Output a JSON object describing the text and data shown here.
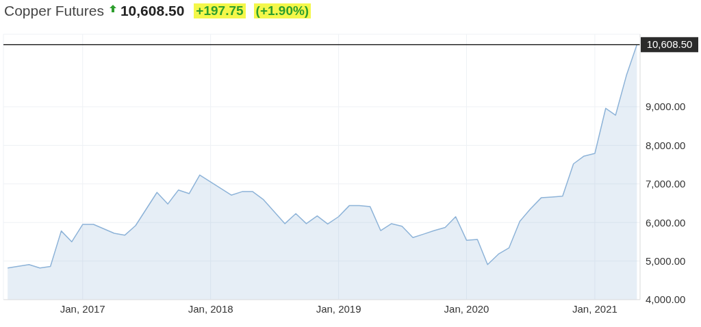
{
  "chart_data": {
    "type": "area",
    "title": "Copper Futures",
    "annotations": [
      "10,608.50",
      "+197.75",
      "(+1.90%)"
    ],
    "x": [
      "2016-06",
      "2016-08",
      "2016-09",
      "2016-10",
      "2016-11",
      "2016-12",
      "2017-01",
      "2017-02",
      "2017-04",
      "2017-05",
      "2017-06",
      "2017-08",
      "2017-09",
      "2017-10",
      "2017-11",
      "2017-12",
      "2018-03",
      "2018-04",
      "2018-05",
      "2018-06",
      "2018-08",
      "2018-09",
      "2018-10",
      "2018-11",
      "2018-12",
      "2019-01",
      "2019-02",
      "2019-03",
      "2019-04",
      "2019-05",
      "2019-06",
      "2019-07",
      "2019-08",
      "2019-09",
      "2019-10",
      "2019-11",
      "2019-12",
      "2020-01",
      "2020-02",
      "2020-03",
      "2020-04",
      "2020-05",
      "2020-06",
      "2020-07",
      "2020-08",
      "2020-09",
      "2020-10",
      "2020-11",
      "2020-12",
      "2021-01",
      "2021-02",
      "2021-03",
      "2021-04",
      "2021-05"
    ],
    "series": [
      {
        "color": "#8db3d8",
        "values": [
          4820,
          4910,
          4820,
          4860,
          5780,
          5500,
          5950,
          5950,
          5720,
          5670,
          5920,
          6780,
          6480,
          6840,
          6750,
          7230,
          6710,
          6800,
          6800,
          6590,
          5970,
          6230,
          5970,
          6170,
          5960,
          6150,
          6440,
          6440,
          6410,
          5790,
          5970,
          5900,
          5610,
          5700,
          5790,
          5870,
          6150,
          5540,
          5560,
          4910,
          5180,
          5340,
          6030,
          6350,
          6640,
          6660,
          6680,
          7520,
          7720,
          7790,
          8960,
          8780,
          9810,
          10608.5
        ]
      }
    ],
    "xlim": [
      "2016-05-20",
      "2021-05-10"
    ],
    "xticks": [
      {
        "value": "2017-01-01",
        "label": "Jan, 2017"
      },
      {
        "value": "2018-01-01",
        "label": "Jan, 2018"
      },
      {
        "value": "2019-01-01",
        "label": "Jan, 2019"
      },
      {
        "value": "2020-01-01",
        "label": "Jan, 2020"
      },
      {
        "value": "2021-01-01",
        "label": "Jan, 2021"
      }
    ],
    "ylim": [
      4000,
      10880
    ],
    "yticks": [
      {
        "value": 4000,
        "label": "4,000.00"
      },
      {
        "value": 5000,
        "label": "5,000.00"
      },
      {
        "value": 6000,
        "label": "6,000.00"
      },
      {
        "value": 7000,
        "label": "7,000.00"
      },
      {
        "value": 8000,
        "label": "8,000.00"
      },
      {
        "value": 9000,
        "label": "9,000.00"
      }
    ],
    "ref_lines": [
      {
        "axis": "y",
        "value": 10608.5,
        "label": "10,608.50",
        "color": "#000000"
      }
    ],
    "grid": true
  }
}
